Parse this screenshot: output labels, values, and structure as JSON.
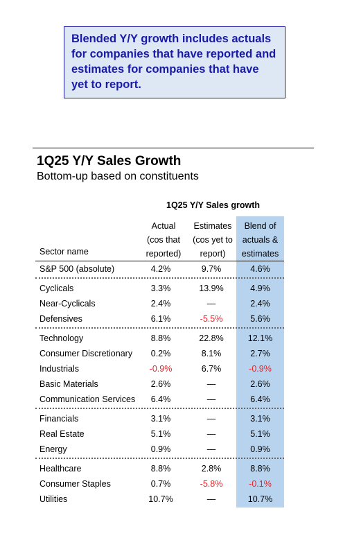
{
  "callout": {
    "lines": [
      "Blended Y/Y growth includes actuals",
      "for companies that have reported and",
      "estimates for companies that have",
      "yet to report."
    ]
  },
  "title": "1Q25 Y/Y Sales Growth",
  "subtitle": "Bottom-up based on constituents",
  "table": {
    "title": "1Q25 Y/Y Sales growth",
    "sector_header": "Sector name",
    "headers": {
      "actual": [
        "Actual",
        "(cos that",
        "reported)"
      ],
      "estimates": [
        "Estimates",
        "(cos yet to",
        "report)"
      ],
      "blend": [
        "Blend of",
        "actuals &",
        "estimates"
      ]
    },
    "colors": {
      "blend_column": "#b8d3ee",
      "negative": "#e8242a",
      "callout_text": "#1a1aa8",
      "callout_bg": "#dde8f4"
    },
    "groups": [
      {
        "rows": [
          {
            "sector": "S&P 500 (absolute)",
            "actual": "4.2%",
            "estimates": "9.7%",
            "blend": "4.6%"
          }
        ]
      },
      {
        "rows": [
          {
            "sector": "Cyclicals",
            "actual": "3.3%",
            "estimates": "13.9%",
            "blend": "4.9%"
          },
          {
            "sector": "Near-Cyclicals",
            "actual": "2.4%",
            "estimates": "—",
            "blend": "2.4%"
          },
          {
            "sector": "Defensives",
            "actual": "6.1%",
            "estimates": "-5.5%",
            "blend": "5.6%"
          }
        ]
      },
      {
        "rows": [
          {
            "sector": "Technology",
            "actual": "8.8%",
            "estimates": "22.8%",
            "blend": "12.1%"
          },
          {
            "sector": "Consumer Discretionary",
            "actual": "0.2%",
            "estimates": "8.1%",
            "blend": "2.7%"
          },
          {
            "sector": "Industrials",
            "actual": "-0.9%",
            "estimates": "6.7%",
            "blend": "-0.9%"
          },
          {
            "sector": "Basic Materials",
            "actual": "2.6%",
            "estimates": "—",
            "blend": "2.6%"
          },
          {
            "sector": "Communication Services",
            "actual": "6.4%",
            "estimates": "—",
            "blend": "6.4%"
          }
        ]
      },
      {
        "rows": [
          {
            "sector": "Financials",
            "actual": "3.1%",
            "estimates": "—",
            "blend": "3.1%"
          },
          {
            "sector": "Real Estate",
            "actual": "5.1%",
            "estimates": "—",
            "blend": "5.1%"
          },
          {
            "sector": "Energy",
            "actual": "0.9%",
            "estimates": "—",
            "blend": "0.9%"
          }
        ]
      },
      {
        "rows": [
          {
            "sector": "Healthcare",
            "actual": "8.8%",
            "estimates": "2.8%",
            "blend": "8.8%"
          },
          {
            "sector": "Consumer Staples",
            "actual": "0.7%",
            "estimates": "-5.8%",
            "blend": "-0.1%"
          },
          {
            "sector": "Utilities",
            "actual": "10.7%",
            "estimates": "—",
            "blend": "10.7%"
          }
        ]
      }
    ]
  }
}
